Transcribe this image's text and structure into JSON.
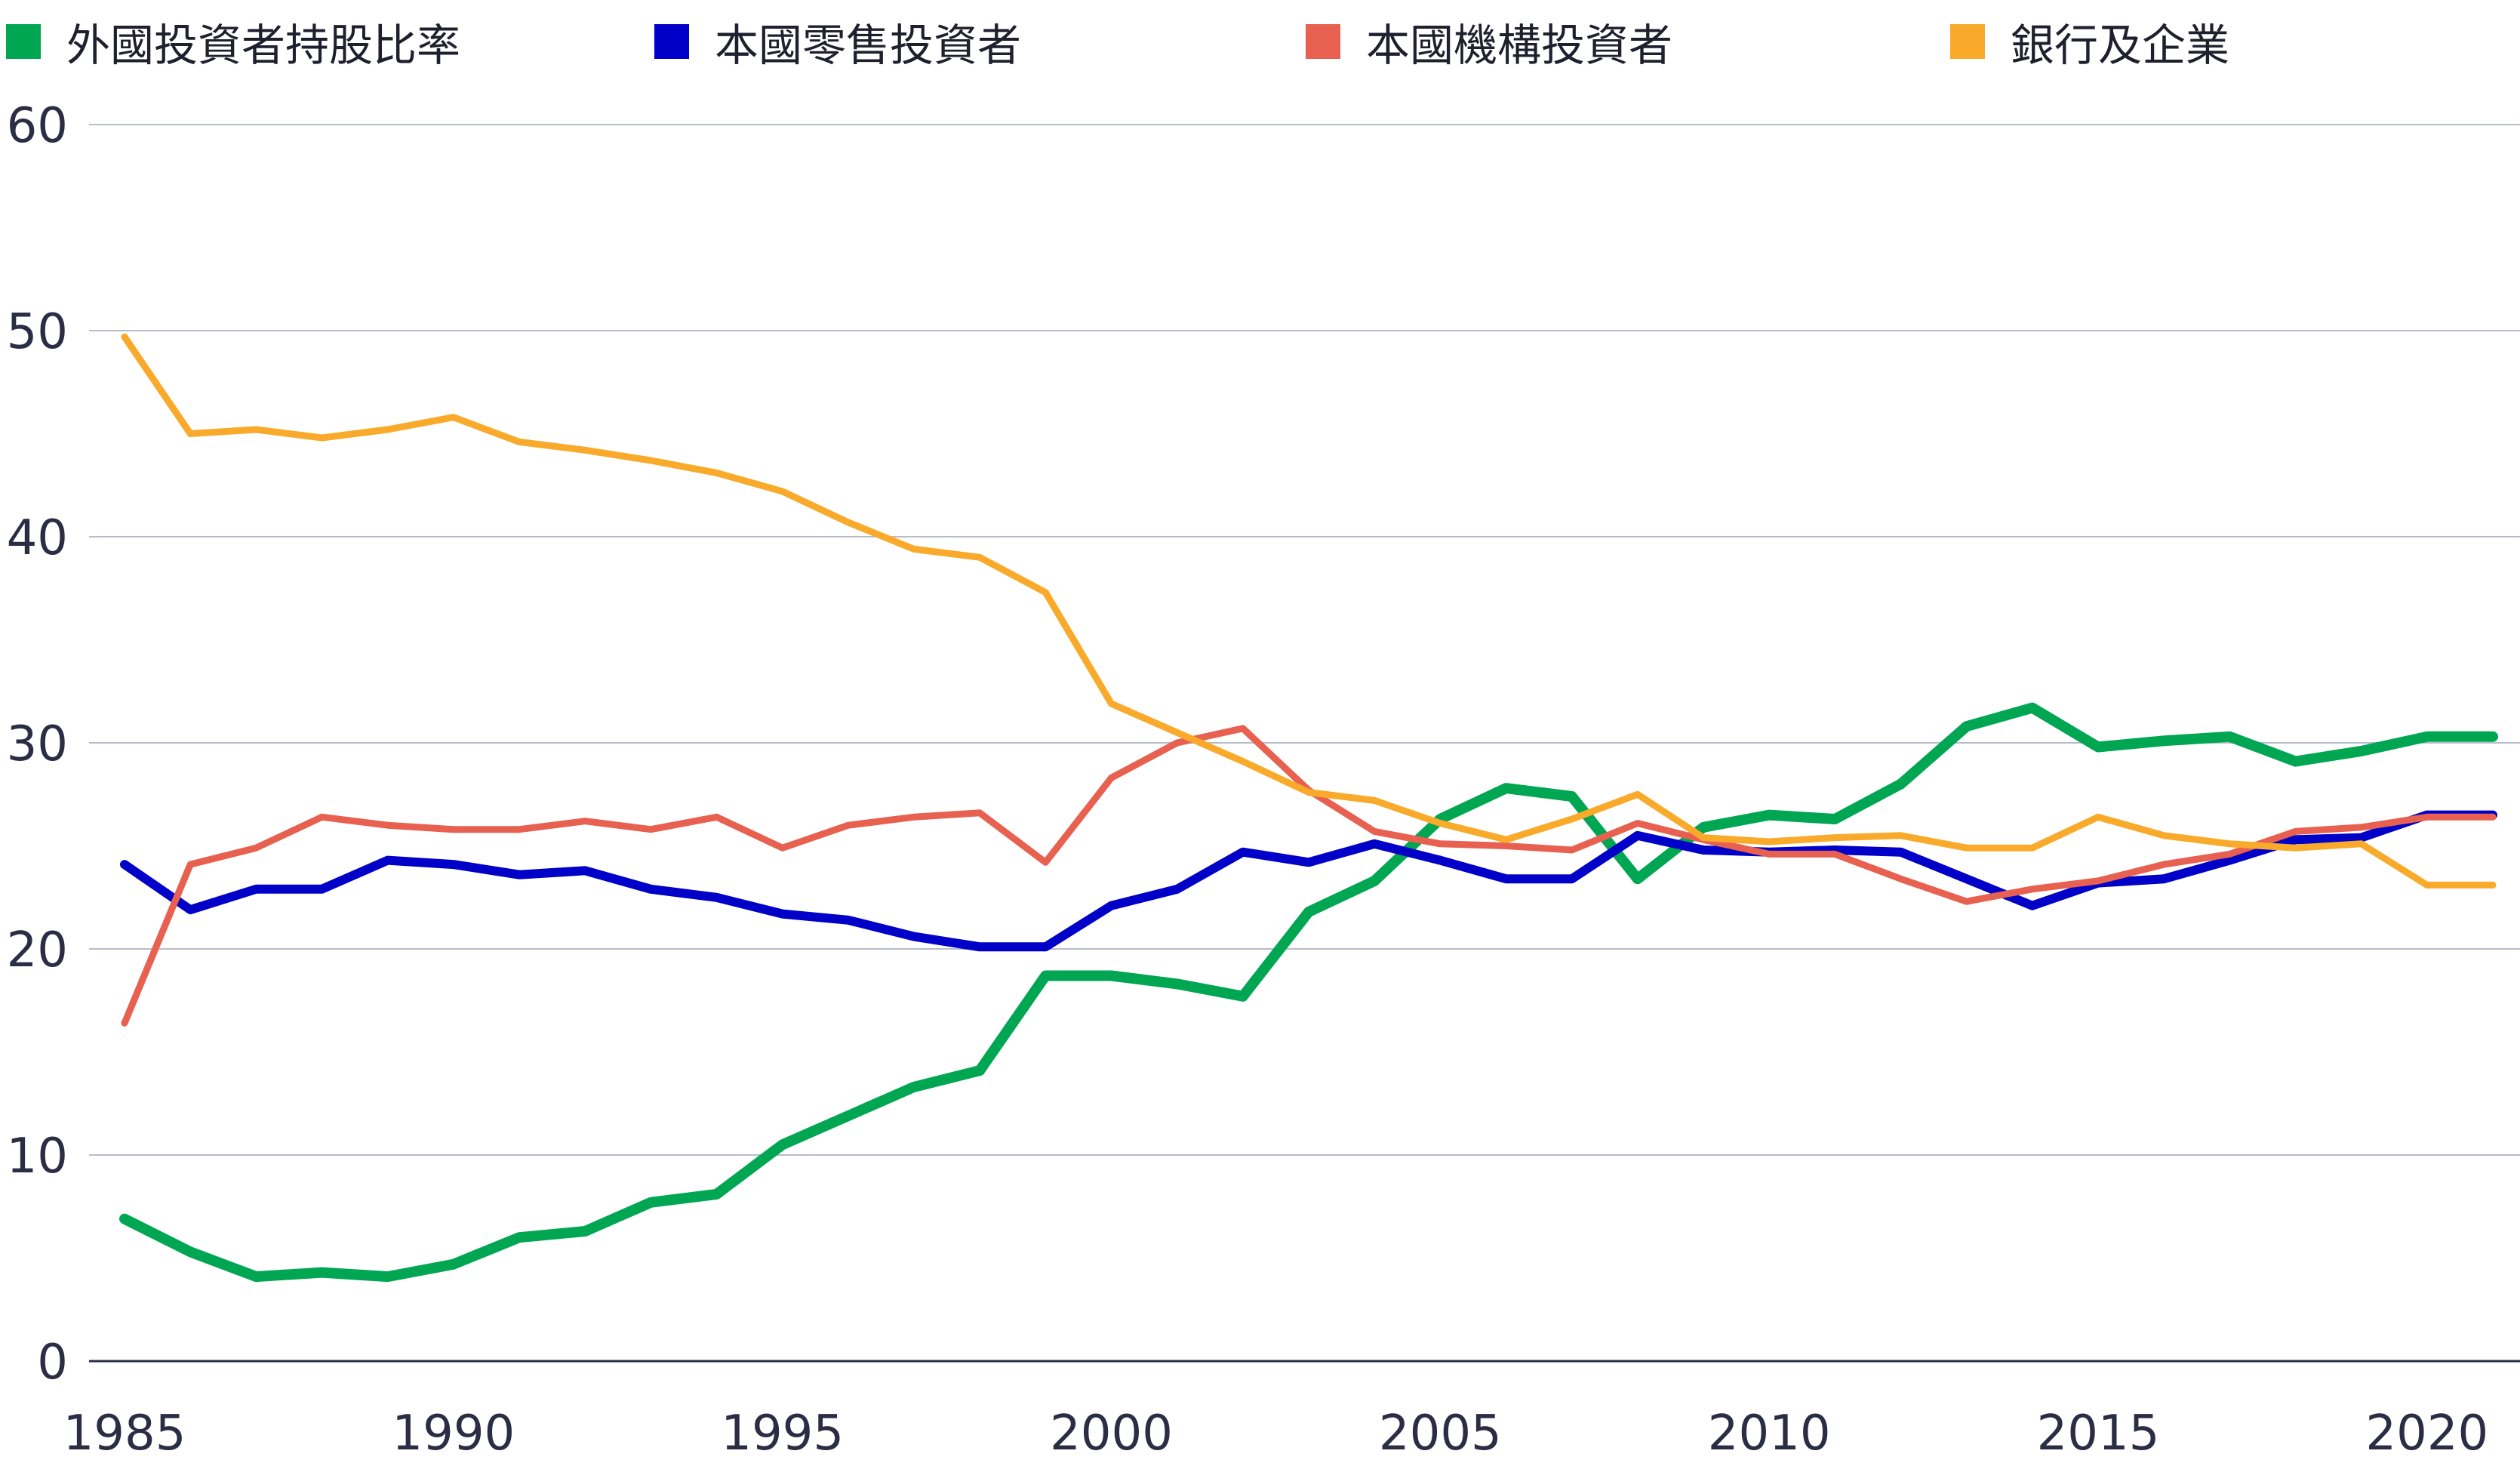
{
  "chart_data": {
    "type": "line",
    "title": "",
    "xlabel": "",
    "ylabel": "",
    "ylim": [
      0,
      60
    ],
    "yticks": [
      "0",
      "10",
      "20",
      "30",
      "40",
      "50",
      "60"
    ],
    "xlim": [
      1985,
      2021
    ],
    "xticks": [
      "1985",
      "1990",
      "1995",
      "2000",
      "2005",
      "2010",
      "2015",
      "2020"
    ],
    "grid": true,
    "legend_position": "top",
    "x": [
      1985,
      1986,
      1987,
      1988,
      1989,
      1990,
      1991,
      1992,
      1993,
      1994,
      1995,
      1996,
      1997,
      1998,
      1999,
      2000,
      2001,
      2002,
      2003,
      2004,
      2005,
      2006,
      2007,
      2008,
      2009,
      2010,
      2011,
      2012,
      2013,
      2014,
      2015,
      2016,
      2017,
      2018,
      2019,
      2020,
      2021
    ],
    "series": [
      {
        "name": "外國投資者持股比率",
        "color": "#00a651",
        "values": [
          6.9,
          5.3,
          4.1,
          4.3,
          4.1,
          4.7,
          6.0,
          6.3,
          7.7,
          8.1,
          10.5,
          11.9,
          13.3,
          14.1,
          18.7,
          18.7,
          18.3,
          17.7,
          21.8,
          23.3,
          26.3,
          27.8,
          27.4,
          23.4,
          25.9,
          26.5,
          26.3,
          28.0,
          30.8,
          31.7,
          29.8,
          30.1,
          30.3,
          29.1,
          29.6,
          30.3,
          30.3
        ],
        "width": 14
      },
      {
        "name": "本國零售投資者",
        "color": "#0000c8",
        "values": [
          24.1,
          21.9,
          22.9,
          22.9,
          24.3,
          24.1,
          23.6,
          23.8,
          22.9,
          22.5,
          21.7,
          21.4,
          20.6,
          20.1,
          20.1,
          22.1,
          22.9,
          24.7,
          24.2,
          25.1,
          24.3,
          23.4,
          23.4,
          25.5,
          24.8,
          24.7,
          24.8,
          24.7,
          23.4,
          22.1,
          23.2,
          23.4,
          24.3,
          25.3,
          25.4,
          26.5,
          26.5
        ],
        "width": 12
      },
      {
        "name": "本國機構投資者",
        "color": "#e8604f",
        "values": [
          16.4,
          24.1,
          24.9,
          26.4,
          26.0,
          25.8,
          25.8,
          26.2,
          25.8,
          26.4,
          24.9,
          26.0,
          26.4,
          26.6,
          24.2,
          28.3,
          30.0,
          30.7,
          27.7,
          25.7,
          25.1,
          25.0,
          24.8,
          26.1,
          25.3,
          24.6,
          24.6,
          23.4,
          22.3,
          22.9,
          23.3,
          24.1,
          24.6,
          25.7,
          25.9,
          26.4,
          26.4
        ],
        "width": 9
      },
      {
        "name": "銀行及企業",
        "color": "#f9aa2b",
        "values": [
          49.7,
          45.0,
          45.2,
          44.8,
          45.2,
          45.8,
          44.6,
          44.2,
          43.7,
          43.1,
          42.2,
          40.7,
          39.4,
          39.0,
          37.3,
          31.9,
          30.5,
          29.1,
          27.6,
          27.2,
          26.1,
          25.3,
          26.3,
          27.5,
          25.4,
          25.2,
          25.4,
          25.5,
          24.9,
          24.9,
          26.4,
          25.5,
          25.1,
          24.9,
          25.1,
          23.1,
          23.1
        ],
        "width": 9
      }
    ]
  }
}
